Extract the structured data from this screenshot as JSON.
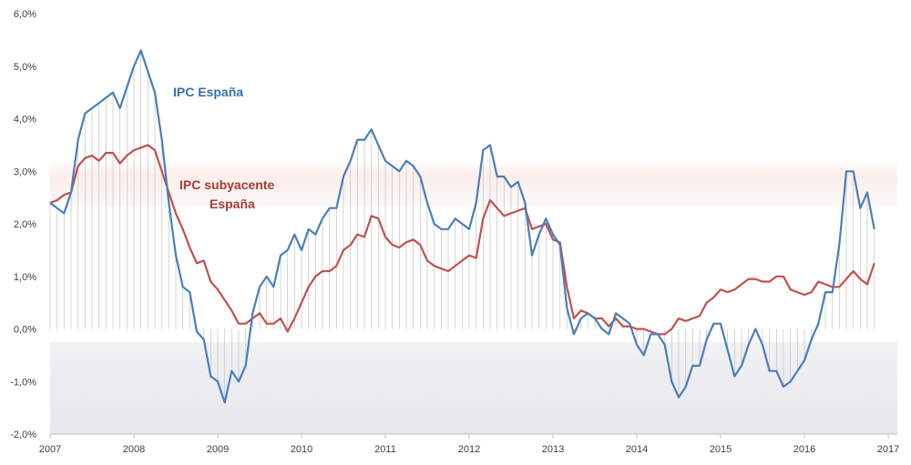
{
  "chart_data": {
    "type": "line",
    "title": "",
    "xlabel": "",
    "ylabel": "",
    "ylim": [
      -2.0,
      6.0
    ],
    "y_ticks": [
      "-2,0%",
      "-1,0%",
      "0,0%",
      "1,0%",
      "2,0%",
      "3,0%",
      "4,0%",
      "5,0%",
      "6,0%"
    ],
    "y_tick_values": [
      -2,
      -1,
      0,
      1,
      2,
      3,
      4,
      5,
      6
    ],
    "x_ticks": [
      "2007",
      "2008",
      "2009",
      "2010",
      "2011",
      "2012",
      "2013",
      "2014",
      "2015",
      "2016",
      "2017"
    ],
    "x_tick_values": [
      2007,
      2008,
      2009,
      2010,
      2011,
      2012,
      2013,
      2014,
      2015,
      2016,
      2017
    ],
    "x_start": 2007.0,
    "x_step_months": 1,
    "annotations": {
      "ipc": "IPC España",
      "subyacente_line1": "IPC subyacente",
      "subyacente_line2": "España"
    },
    "series": [
      {
        "name": "IPC España",
        "color": "#4a7ebb",
        "values": [
          2.4,
          2.3,
          2.2,
          2.6,
          3.6,
          4.1,
          4.2,
          4.3,
          4.4,
          4.5,
          4.2,
          4.6,
          5.0,
          5.3,
          4.9,
          4.5,
          3.6,
          2.4,
          1.4,
          0.8,
          0.7,
          -0.05,
          -0.2,
          -0.9,
          -1.0,
          -1.4,
          -0.8,
          -1.0,
          -0.7,
          0.3,
          0.8,
          1.0,
          0.8,
          1.4,
          1.5,
          1.8,
          1.5,
          1.9,
          1.8,
          2.1,
          2.3,
          2.3,
          2.9,
          3.2,
          3.6,
          3.6,
          3.8,
          3.5,
          3.2,
          3.1,
          3.0,
          3.2,
          3.1,
          2.9,
          2.4,
          2.0,
          1.9,
          1.9,
          2.1,
          2.0,
          1.9,
          2.4,
          3.4,
          3.5,
          2.9,
          2.9,
          2.7,
          2.8,
          2.4,
          1.4,
          1.8,
          2.1,
          1.8,
          1.6,
          0.4,
          -0.1,
          0.2,
          0.3,
          0.2,
          0.0,
          -0.1,
          0.3,
          0.2,
          0.1,
          -0.3,
          -0.5,
          -0.1,
          -0.1,
          -0.3,
          -1.0,
          -1.3,
          -1.1,
          -0.7,
          -0.7,
          -0.2,
          0.1,
          0.1,
          -0.4,
          -0.9,
          -0.7,
          -0.3,
          0.0,
          -0.3,
          -0.8,
          -0.8,
          -1.1,
          -1.0,
          -0.8,
          -0.6,
          -0.2,
          0.1,
          0.7,
          0.7,
          1.6,
          3.0,
          3.0,
          2.3,
          2.6,
          1.9
        ]
      },
      {
        "name": "IPC subyacente España",
        "color": "#c0504d",
        "values": [
          2.4,
          2.45,
          2.55,
          2.6,
          3.1,
          3.25,
          3.3,
          3.2,
          3.35,
          3.35,
          3.15,
          3.3,
          3.4,
          3.45,
          3.5,
          3.4,
          3.0,
          2.6,
          2.2,
          1.9,
          1.55,
          1.25,
          1.3,
          0.9,
          0.75,
          0.55,
          0.35,
          0.1,
          0.1,
          0.2,
          0.3,
          0.1,
          0.1,
          0.2,
          -0.05,
          0.2,
          0.5,
          0.8,
          1.0,
          1.1,
          1.1,
          1.2,
          1.5,
          1.6,
          1.8,
          1.75,
          2.15,
          2.1,
          1.75,
          1.6,
          1.55,
          1.65,
          1.7,
          1.6,
          1.3,
          1.2,
          1.15,
          1.1,
          1.2,
          1.3,
          1.4,
          1.35,
          2.1,
          2.45,
          2.3,
          2.15,
          2.2,
          2.25,
          2.3,
          1.9,
          1.95,
          2.0,
          1.7,
          1.65,
          0.8,
          0.2,
          0.35,
          0.3,
          0.2,
          0.2,
          0.05,
          0.2,
          0.05,
          0.05,
          0.0,
          0.0,
          -0.05,
          -0.1,
          -0.1,
          0.0,
          0.2,
          0.15,
          0.2,
          0.25,
          0.5,
          0.6,
          0.75,
          0.7,
          0.75,
          0.85,
          0.95,
          0.95,
          0.9,
          0.9,
          1.0,
          1.0,
          0.75,
          0.7,
          0.65,
          0.7,
          0.9,
          0.85,
          0.8,
          0.8,
          0.95,
          1.1,
          0.95,
          0.85,
          1.25
        ]
      }
    ]
  }
}
